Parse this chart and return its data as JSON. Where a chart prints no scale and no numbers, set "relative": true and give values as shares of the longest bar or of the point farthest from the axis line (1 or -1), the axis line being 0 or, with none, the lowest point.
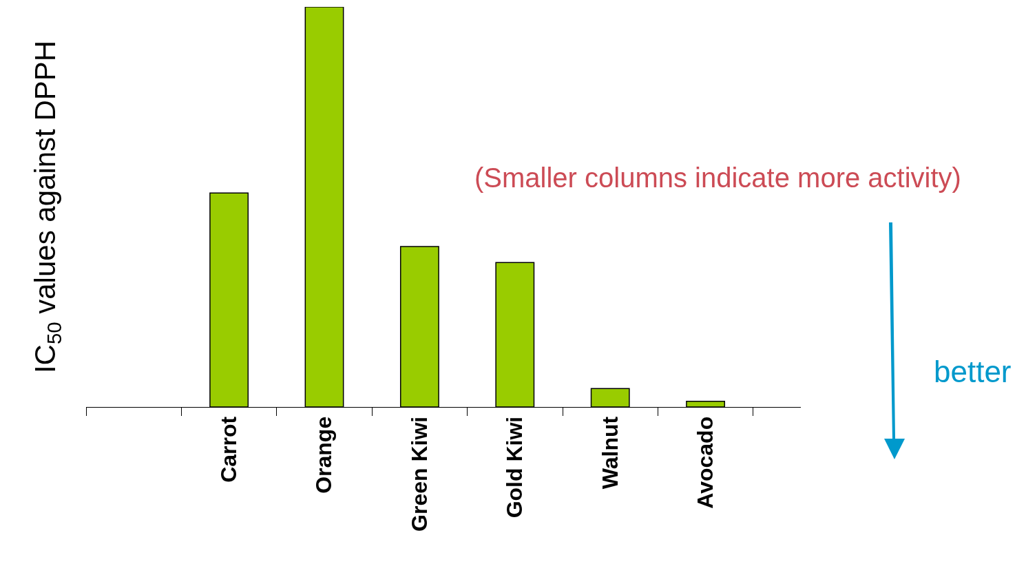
{
  "chart_data": {
    "type": "bar",
    "relative": true,
    "categories": [
      null,
      "Carrot",
      "Orange",
      "Green Kiwi",
      "Gold Kiwi",
      "Walnut",
      "Avocado"
    ],
    "values": [
      null,
      0.535,
      1,
      0.401,
      0.361,
      0.046,
      0.014
    ],
    "color": "#99cc00",
    "ylabel": "IC$_{50}$ values against DPPH",
    "annotations": [
      "(Smaller columns indicate more activity)",
      "better"
    ],
    "legend": false
  }
}
